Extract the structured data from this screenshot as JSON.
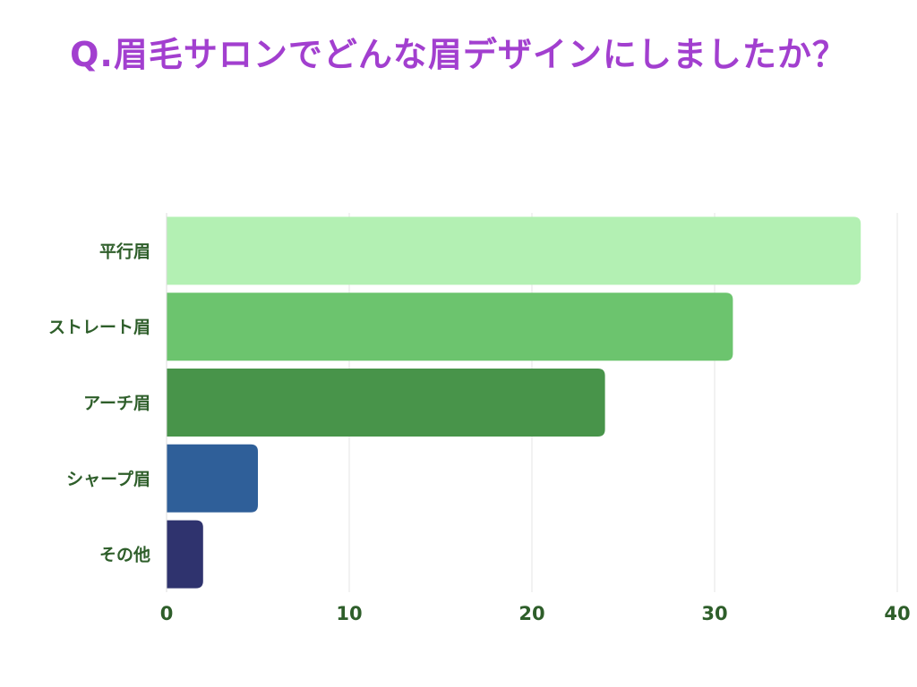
{
  "title": "Q.眉毛サロンでどんな眉デザインにしましたか？",
  "chart_data": {
    "type": "bar",
    "orientation": "horizontal",
    "title": "Q.眉毛サロンでどんな眉デザインにしましたか？",
    "categories": [
      "平行眉",
      "ストレート眉",
      "アーチ眉",
      "シャープ眉",
      "その他"
    ],
    "values": [
      38,
      31,
      24,
      5,
      2
    ],
    "colors": [
      "#b3f0b3",
      "#6cc46e",
      "#48944a",
      "#2f5f99",
      "#2f336e"
    ],
    "xlim": [
      0,
      40
    ],
    "xticks": [
      0,
      10,
      20,
      30,
      40
    ],
    "grid": true,
    "legend": "none"
  }
}
